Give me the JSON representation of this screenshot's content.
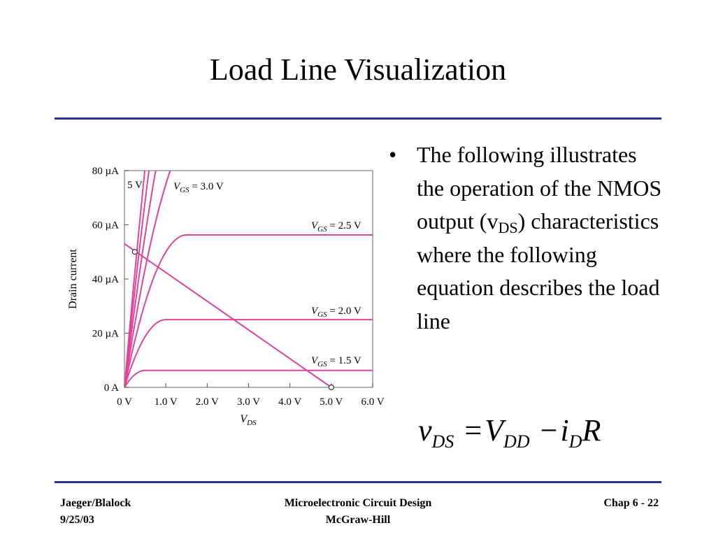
{
  "slide": {
    "title": "Load Line Visualization",
    "bullet_symbol": "•",
    "bullet_text_part1": "The following illustrates the operation of the NMOS output (v",
    "bullet_text_sub": "DS",
    "bullet_text_part2": ") characteristics where the following equation describes the load line",
    "equation": {
      "lhs": "v",
      "lhs_sub": "DS",
      "eq": "=",
      "v": "V",
      "v_sub": "DD",
      "minus": "−",
      "i": "i",
      "i_sub": "D",
      "r": "R"
    }
  },
  "footer": {
    "left_line1": "Jaeger/Blalock",
    "left_line2": "9/25/03",
    "center_line1": "Microelectronic Circuit Design",
    "center_line2": "McGraw-Hill",
    "right": "Chap 6 - 22"
  },
  "chart_data": {
    "type": "line",
    "xlabel": "V",
    "xlabel_sub": "DS",
    "ylabel": "Drain current",
    "xlim": [
      0,
      6
    ],
    "ylim": [
      0,
      80
    ],
    "x_ticks": [
      0,
      1,
      2,
      3,
      4,
      5,
      6
    ],
    "x_tick_labels": [
      "0 V",
      "1.0 V",
      "2.0 V",
      "3.0 V",
      "4.0 V",
      "5.0 V",
      "6.0 V"
    ],
    "y_ticks": [
      0,
      20,
      40,
      60,
      80
    ],
    "y_tick_labels": [
      "0 A",
      "20 µA",
      "40 µA",
      "60 µA",
      "80 µA"
    ],
    "curve_color": "#e0449a",
    "curves": [
      {
        "vt": 1.0,
        "ksat": 6.25,
        "label_prefix": "V",
        "label_sub": "GS",
        "label_suffix": " = 1.5 V"
      },
      {
        "vt": 1.0,
        "ksat": 25,
        "label_prefix": "V",
        "label_sub": "GS",
        "label_suffix": " = 2.0 V"
      },
      {
        "vt": 1.0,
        "ksat": 56.25,
        "label_prefix": "V",
        "label_sub": "GS",
        "label_suffix": " = 2.5 V"
      },
      {
        "vt": 1.0,
        "ksat": 100,
        "label_prefix": "V",
        "label_sub": "GS",
        "label_suffix": " = 3.0 V"
      },
      {
        "vt": 1.0,
        "ksat": 156.25,
        "label_prefix": "",
        "label_sub": "",
        "label_suffix": ""
      },
      {
        "vt": 1.0,
        "ksat": 225,
        "label_prefix": "",
        "label_sub": "",
        "label_suffix": ""
      },
      {
        "vt": 1.0,
        "ksat": 306.25,
        "label_prefix": "",
        "label_sub": "",
        "label_suffix": ""
      }
    ],
    "partial_label": "5 V",
    "load_line": {
      "x": [
        0,
        5
      ],
      "y": [
        53,
        0
      ]
    },
    "q_points": [
      {
        "x": 0.25,
        "y": 50
      },
      {
        "x": 5.0,
        "y": 0
      }
    ]
  }
}
